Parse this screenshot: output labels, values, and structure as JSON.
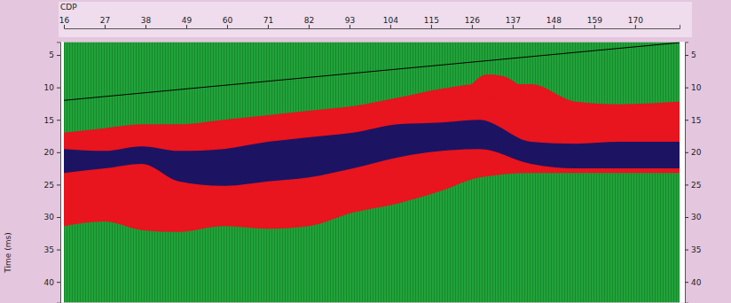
{
  "chart_data": {
    "type": "area",
    "x_label": "CDP",
    "y_label": "Time (ms)",
    "x": [
      16,
      27,
      37,
      47,
      59,
      71,
      82,
      94,
      106,
      118,
      128,
      142,
      154,
      166,
      182
    ],
    "xlim": [
      16,
      182
    ],
    "ylim": [
      3,
      43.2
    ],
    "xticks": [
      16,
      27,
      38,
      49,
      60,
      71,
      82,
      93,
      104,
      115,
      126,
      137,
      148,
      159,
      170
    ],
    "yticks": [
      5,
      10,
      15,
      20,
      25,
      30,
      35,
      40
    ],
    "series": [
      {
        "color": "#e8141e",
        "top": [
          17.0,
          16.3,
          15.7,
          15.7,
          15.0,
          14.3,
          13.6,
          12.9,
          11.6,
          10.2,
          9.5,
          9.5,
          12.2,
          12.6,
          12.2
        ],
        "values": [
          31.4,
          30.7,
          32.0,
          32.3,
          31.4,
          31.8,
          31.4,
          29.3,
          27.9,
          25.9,
          23.9,
          23.2,
          23.2,
          23.2,
          23.2
        ]
      },
      {
        "color": "#1c1462",
        "top": [
          19.5,
          19.8,
          19.1,
          19.8,
          19.5,
          18.4,
          17.7,
          17.0,
          15.7,
          15.4,
          15.0,
          18.4,
          18.7,
          18.4,
          18.4
        ],
        "values": [
          23.2,
          22.5,
          21.8,
          24.5,
          25.2,
          24.5,
          23.9,
          22.5,
          20.8,
          19.8,
          19.5,
          21.8,
          22.5,
          22.5,
          22.5
        ]
      },
      {
        "color": "#e8141e",
        "x": [
          126,
          130,
          134,
          139
        ],
        "top": [
          9.5,
          8.0,
          8.2,
          9.8
        ],
        "values": [
          11.5,
          11.8,
          11.6,
          11.2
        ]
      },
      {
        "type": "line",
        "color": "#000000",
        "x": [
          16,
          182
        ],
        "values": [
          12.0,
          3.1
        ]
      }
    ]
  }
}
